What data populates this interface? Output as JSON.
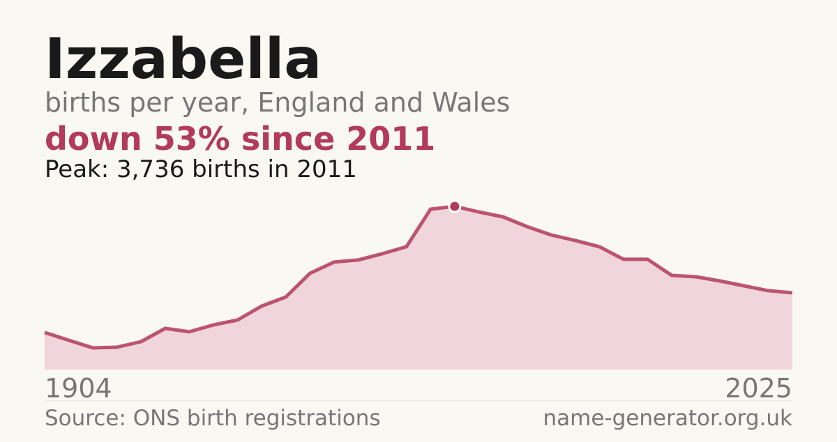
{
  "chart_data": {
    "type": "area",
    "title": "Izzabella",
    "subtitle": "births per year, England and Wales",
    "headline": "down 53% since 2011",
    "annotation": "Peak: 3,736 births in 2011",
    "source": "Source: ONS birth registrations",
    "site": "name-generator.org.uk",
    "categories": [
      "1904",
      null,
      null,
      null,
      null,
      null,
      null,
      null,
      null,
      null,
      null,
      null,
      null,
      null,
      null,
      null,
      null,
      null,
      null,
      null,
      null,
      null,
      null,
      null,
      null,
      null,
      null,
      null,
      null,
      null,
      null,
      "2025"
    ],
    "values": [
      847,
      671,
      495,
      511,
      639,
      942,
      863,
      1022,
      1134,
      1453,
      1661,
      2204,
      2460,
      2508,
      2652,
      2812,
      3672,
      3736,
      3608,
      3497,
      3273,
      3081,
      2955,
      2812,
      2524,
      2524,
      2156,
      2124,
      2028,
      1916,
      1805,
      1756
    ],
    "peak_index": 17,
    "color": "#b23a5a",
    "area_color": "#f1d5dc"
  }
}
